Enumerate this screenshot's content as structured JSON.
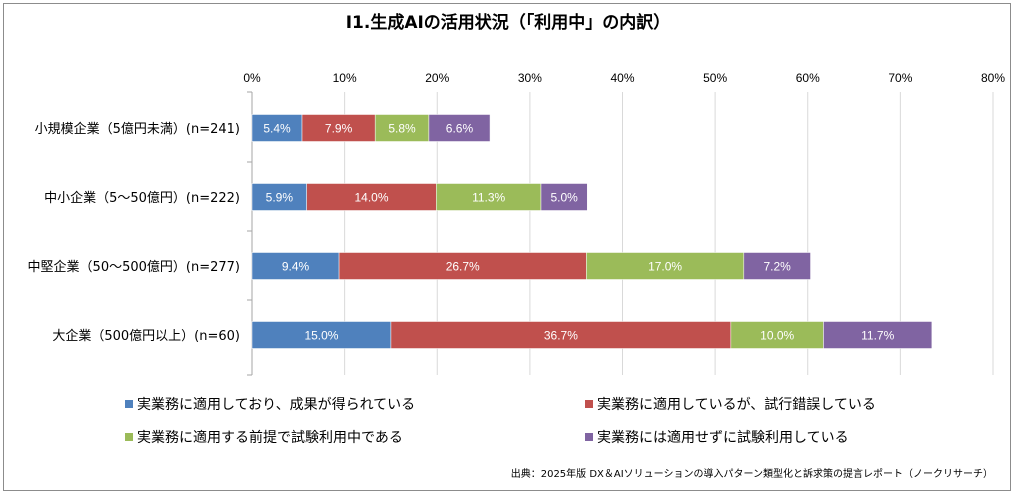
{
  "chart_data": {
    "type": "bar",
    "orientation": "horizontal",
    "stacked": true,
    "title": "I1.生成AIの活用状況（「利用中」の内訳）",
    "xlim": [
      0,
      80
    ],
    "xtick_labels": [
      "0%",
      "10%",
      "20%",
      "30%",
      "40%",
      "50%",
      "60%",
      "70%",
      "80%"
    ],
    "xticks": [
      0,
      10,
      20,
      30,
      40,
      50,
      60,
      70,
      80
    ],
    "grid": true,
    "legend_position": "bottom",
    "categories": [
      "小規模企業（5億円未満）(n=241)",
      "中小企業（5～50億円）(n=222)",
      "中堅企業（50～500億円）(n=277)",
      "大企業（500億円以上）(n=60)"
    ],
    "series": [
      {
        "name": "実業務に適用しており、成果が得られている",
        "color": "#4f81bd",
        "values": [
          5.4,
          5.9,
          9.4,
          15.0
        ],
        "labels": [
          "5.4%",
          "5.9%",
          "9.4%",
          "15.0%"
        ]
      },
      {
        "name": "実業務に適用しているが、試行錯誤している",
        "color": "#c0504d",
        "values": [
          7.9,
          14.0,
          26.7,
          36.7
        ],
        "labels": [
          "7.9%",
          "14.0%",
          "26.7%",
          "36.7%"
        ]
      },
      {
        "name": "実業務に適用する前提で試験利用中である",
        "color": "#9bbb59",
        "values": [
          5.8,
          11.3,
          17.0,
          10.0
        ],
        "labels": [
          "5.8%",
          "11.3%",
          "17.0%",
          "10.0%"
        ]
      },
      {
        "name": "実業務には適用せずに試験利用している",
        "color": "#8064a2",
        "values": [
          6.6,
          5.0,
          7.2,
          11.7
        ],
        "labels": [
          "6.6%",
          "5.0%",
          "7.2%",
          "11.7%"
        ]
      }
    ],
    "source": "出典：2025年版 DX＆AIソリューションの導入パターン類型化と訴求策の提言レポート（ノークリサーチ）"
  }
}
